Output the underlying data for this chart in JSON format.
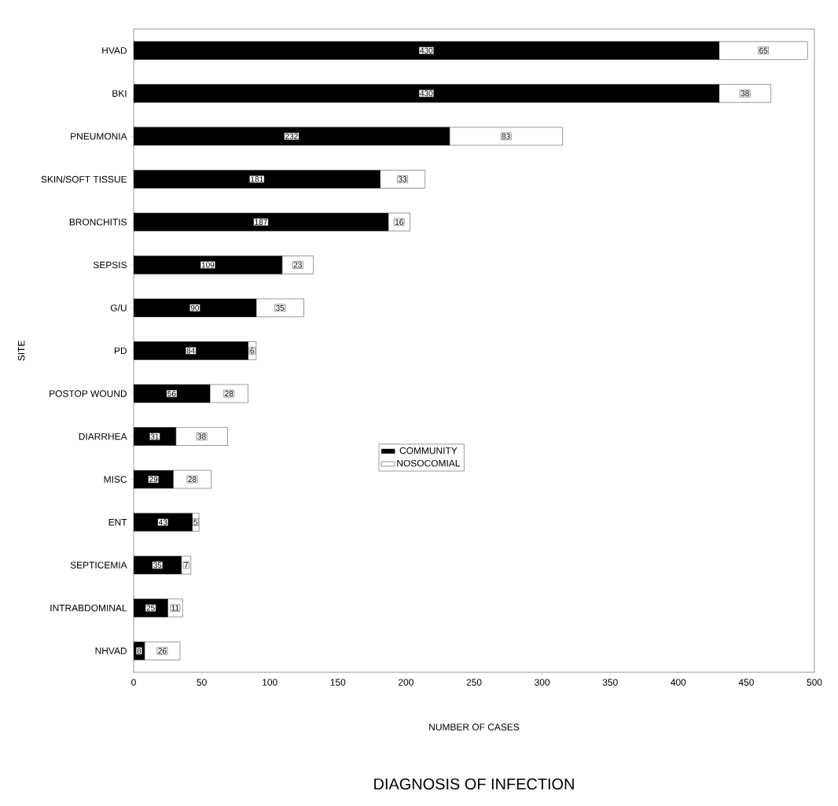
{
  "chart_data": {
    "type": "bar",
    "orientation": "horizontal",
    "stacked": true,
    "title": "DIAGNOSIS OF  INFECTION",
    "xlabel": "NUMBER OF CASES",
    "ylabel": "SITE",
    "categories": [
      "HVAD",
      "BKI",
      "PNEUMONIA",
      "SKIN/SOFT TISSUE",
      "BRONCHITIS",
      "SEPSIS",
      "G/U",
      "PD",
      "POSTOP WOUND",
      "DIARRHEA",
      "MISC",
      "ENT",
      "SEPTICEMIA",
      "INTRABDOMINAL",
      "NHVAD"
    ],
    "series": [
      {
        "name": "COMMUNITY",
        "color": "#000000",
        "values": [
          430,
          430,
          232,
          181,
          187,
          109,
          90,
          84,
          56,
          31,
          29,
          43,
          35,
          25,
          8
        ]
      },
      {
        "name": "NOSOCOMIAL",
        "color": "#ffffff",
        "values": [
          65,
          38,
          83,
          33,
          16,
          23,
          35,
          6,
          28,
          38,
          28,
          5,
          7,
          11,
          26
        ]
      }
    ],
    "xlim": [
      0,
      500
    ],
    "xticks": [
      0,
      50,
      100,
      150,
      200,
      250,
      300,
      350,
      400,
      450,
      500
    ],
    "data_labels": true,
    "legend": "center",
    "grid": false
  }
}
